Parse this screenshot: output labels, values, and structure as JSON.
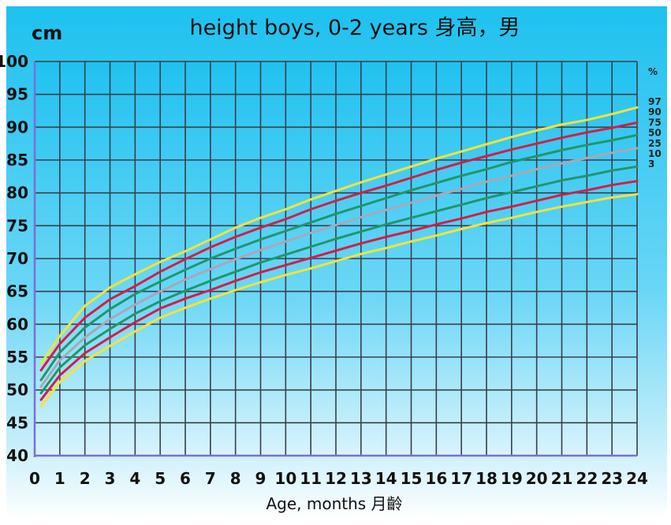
{
  "chart_data": {
    "type": "line",
    "title": "height  boys, 0-2 years 身高，男",
    "ylabel": "cm",
    "xlabel": "Age, months  月齡",
    "xlim": [
      0,
      24
    ],
    "ylim": [
      40,
      100
    ],
    "grid": true,
    "x_ticks": [
      "0",
      "1",
      "2",
      "3",
      "4",
      "5",
      "6",
      "7",
      "8",
      "9",
      "10",
      "11",
      "12",
      "13",
      "14",
      "15",
      "16",
      "17",
      "18",
      "19",
      "20",
      "21",
      "22",
      "23",
      "24"
    ],
    "y_ticks": [
      "40",
      "45",
      "50",
      "55",
      "60",
      "65",
      "70",
      "75",
      "80",
      "85",
      "90",
      "95",
      "100"
    ],
    "legend_title": "%",
    "legend_position": "right",
    "x": [
      0.25,
      1,
      2,
      3,
      4,
      5,
      6,
      7,
      8,
      9,
      10,
      11,
      12,
      13,
      14,
      15,
      16,
      17,
      18,
      19,
      20,
      21,
      22,
      23,
      24
    ],
    "series": [
      {
        "name": "97",
        "color": "#f5e23a",
        "values": [
          54.0,
          58.2,
          62.8,
          65.6,
          67.6,
          69.5,
          71.1,
          72.9,
          74.7,
          76.2,
          77.5,
          79.0,
          80.3,
          81.6,
          82.8,
          84.0,
          85.2,
          86.3,
          87.4,
          88.5,
          89.5,
          90.4,
          91.1,
          92.0,
          93.0
        ]
      },
      {
        "name": "90",
        "color": "#d41e45",
        "values": [
          53.0,
          57.0,
          61.0,
          63.8,
          65.8,
          68.0,
          69.9,
          71.7,
          73.3,
          74.7,
          76.0,
          77.5,
          78.8,
          80.0,
          81.1,
          82.3,
          83.5,
          84.6,
          85.6,
          86.6,
          87.5,
          88.4,
          89.2,
          89.9,
          90.7
        ]
      },
      {
        "name": "75",
        "color": "#22956a",
        "values": [
          51.5,
          55.7,
          59.5,
          62.3,
          64.6,
          66.5,
          68.3,
          70.0,
          71.5,
          72.9,
          74.2,
          75.5,
          76.8,
          78.0,
          79.2,
          80.4,
          81.5,
          82.6,
          83.6,
          84.7,
          85.6,
          86.5,
          87.3,
          88.0,
          88.8
        ]
      },
      {
        "name": "50",
        "color": "#a8a8b8",
        "values": [
          50.5,
          54.5,
          58.0,
          60.8,
          63.0,
          65.0,
          66.8,
          68.4,
          69.9,
          71.3,
          72.6,
          73.9,
          75.1,
          76.3,
          77.4,
          78.5,
          79.6,
          80.6,
          81.7,
          82.6,
          83.6,
          84.5,
          85.3,
          86.1,
          86.8
        ]
      },
      {
        "name": "25",
        "color": "#22956a",
        "values": [
          49.5,
          53.4,
          56.8,
          59.3,
          61.6,
          63.5,
          65.1,
          66.6,
          68.0,
          69.4,
          70.6,
          71.8,
          73.0,
          74.1,
          75.2,
          76.2,
          77.2,
          78.2,
          79.2,
          80.1,
          81.0,
          81.9,
          82.6,
          83.4,
          84.0
        ]
      },
      {
        "name": "10",
        "color": "#d41e45",
        "values": [
          48.5,
          52.2,
          55.6,
          58.0,
          60.3,
          62.4,
          63.9,
          65.2,
          66.6,
          67.9,
          69.0,
          70.1,
          71.2,
          72.3,
          73.3,
          74.2,
          75.2,
          76.1,
          77.1,
          77.9,
          78.8,
          79.7,
          80.4,
          81.2,
          81.8
        ]
      },
      {
        "name": "3",
        "color": "#f5e23a",
        "values": [
          47.5,
          51.2,
          54.4,
          56.7,
          58.9,
          61.0,
          62.5,
          63.9,
          65.2,
          66.4,
          67.5,
          68.5,
          69.6,
          70.7,
          71.6,
          72.6,
          73.5,
          74.5,
          75.4,
          76.2,
          77.1,
          77.9,
          78.6,
          79.3,
          79.8
        ]
      }
    ]
  }
}
